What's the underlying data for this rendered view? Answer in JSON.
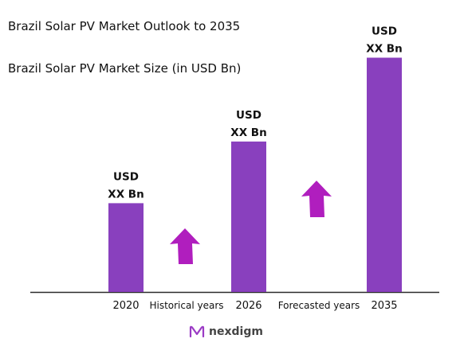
{
  "title": "Brazil Solar PV Market Outlook to 2035",
  "subtitle": "Brazil Solar PV Market Size (in USD Bn)",
  "chart_data": {
    "type": "bar",
    "categories": [
      "2020",
      "2026",
      "2035"
    ],
    "values": [
      0.36,
      0.61,
      0.95
    ],
    "value_labels": [
      [
        "USD",
        "XX Bn"
      ],
      [
        "USD",
        "XX Bn"
      ],
      [
        "USD",
        "XX Bn"
      ]
    ],
    "period_labels": [
      "Historical years",
      "Forecasted years"
    ],
    "ylim": [
      0,
      1
    ],
    "grid": false,
    "bar_color": "#8940BE",
    "arrow_color": "#B01EBE"
  },
  "brand": {
    "name": "nexdigm",
    "logo_icon": "nexdigm-logo-icon",
    "color": "#9B3BC5"
  }
}
